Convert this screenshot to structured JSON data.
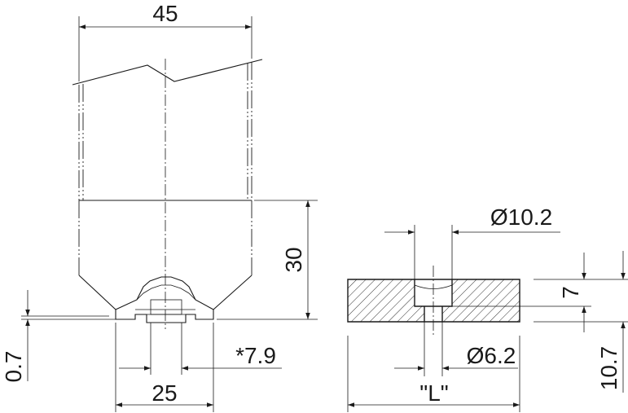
{
  "left_view": {
    "dim_width": "45",
    "dim_height": "30",
    "dim_offset": "0.7",
    "dim_slot": "*7.9",
    "dim_base": "25"
  },
  "right_view": {
    "dim_bore": "Ø10.2",
    "dim_hole": "Ø6.2",
    "dim_thickness": "7",
    "dim_total": "10.7",
    "dim_length": "\"L\""
  }
}
